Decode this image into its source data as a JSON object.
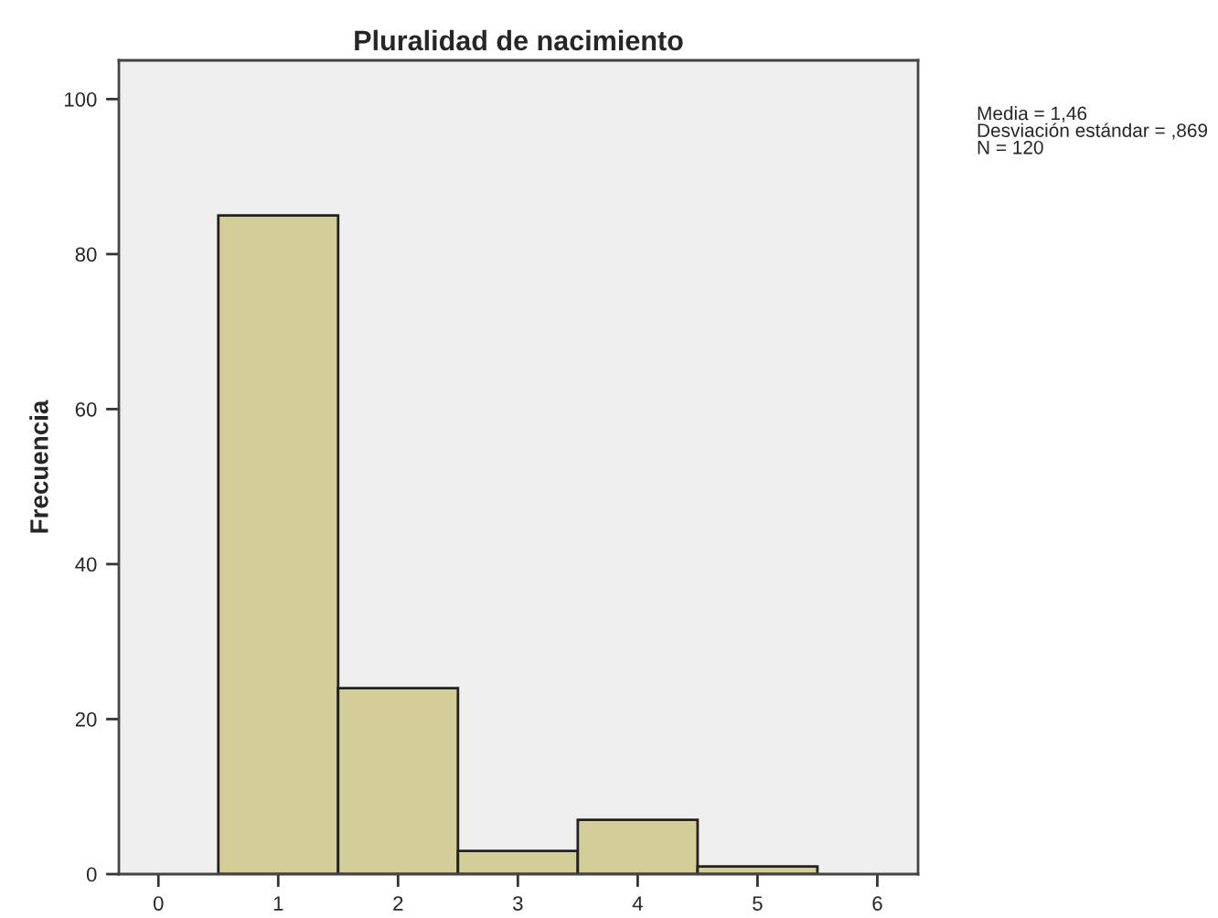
{
  "chart_data": {
    "type": "histogram",
    "title": "Pluralidad de nacimiento",
    "ylabel": "Frecuencia",
    "bins": [
      0.5,
      1.5,
      2.5,
      3.5,
      4.5,
      5.5
    ],
    "values": [
      85,
      24,
      3,
      7,
      1
    ],
    "color": "#d3ce98",
    "xlim": [
      -0.33,
      6.34
    ],
    "xticks": [
      0,
      1,
      2,
      3,
      4,
      5,
      6
    ],
    "ylim": [
      0,
      105
    ],
    "yticks": [
      0,
      20,
      40,
      60,
      80,
      100
    ],
    "grid": false,
    "legend": false,
    "annotations": [
      "Media = 1,46\nDesviación estándar = ,869\nN = 120"
    ]
  }
}
